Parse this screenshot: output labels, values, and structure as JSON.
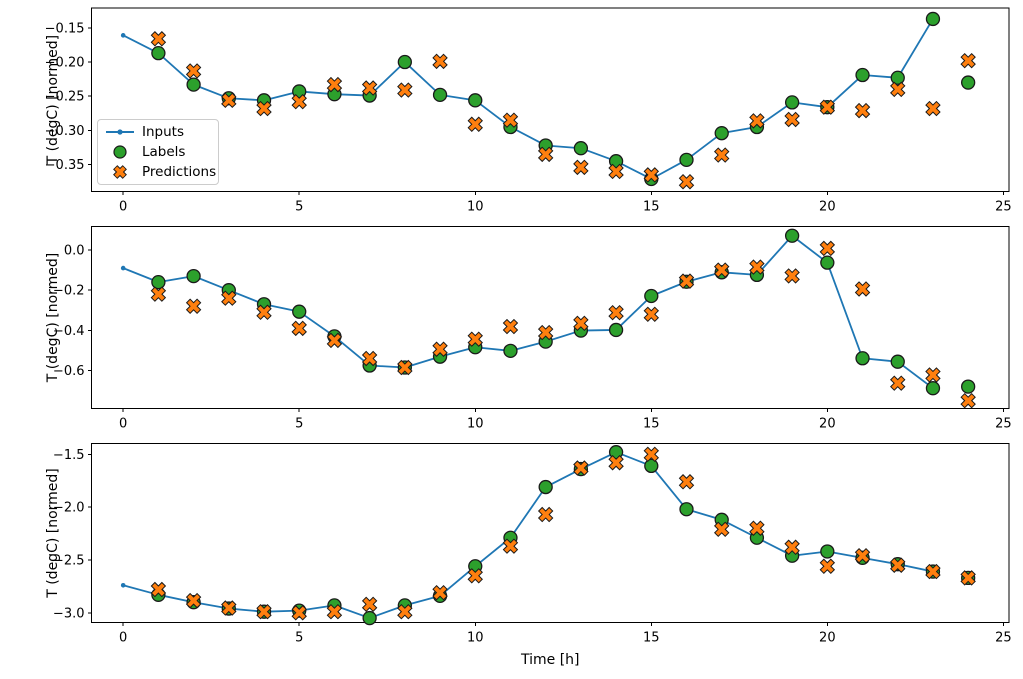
{
  "figure_title": "",
  "colors": {
    "inputs_line": "#1f77b4",
    "labels_marker": "#2ca02c",
    "predictions_marker": "#ff7f0e",
    "marker_edge": "#1a1a1a",
    "axis": "#000000",
    "legend_border": "#cccccc"
  },
  "legend": {
    "position": "upper-left-of-first-subplot",
    "items": [
      {
        "label": "Inputs",
        "marker": "line-with-dot"
      },
      {
        "label": "Labels",
        "marker": "green-circle"
      },
      {
        "label": "Predictions",
        "marker": "orange-x"
      }
    ]
  },
  "xlabel": "Time [h]",
  "ylabel": "T (degC) [normed]",
  "chart_data": [
    {
      "type": "line",
      "subplot": 1,
      "ylabel": "T (degC) [normed]",
      "xlim": [
        -0.9,
        25.16
      ],
      "ylim": [
        -0.389,
        -0.121
      ],
      "xticks": [
        0,
        5,
        10,
        15,
        20,
        25
      ],
      "xtick_labels": [
        "0",
        "5",
        "10",
        "15",
        "20",
        "25"
      ],
      "yticks": [
        -0.15,
        -0.2,
        -0.25,
        -0.3,
        -0.35
      ],
      "ytick_labels": [
        "−0.15",
        "−0.20",
        "−0.25",
        "−0.30",
        "−0.35"
      ],
      "grid": false,
      "legend_visible": true,
      "series": [
        {
          "name": "Inputs",
          "type": "line",
          "marker": "dot",
          "x": [
            0,
            1,
            2,
            3,
            4,
            5,
            6,
            7,
            8,
            9,
            10,
            11,
            12,
            13,
            14,
            15,
            16,
            17,
            18,
            19,
            20,
            21,
            22,
            23
          ],
          "y": [
            -0.161,
            -0.187,
            -0.233,
            -0.253,
            -0.256,
            -0.243,
            -0.247,
            -0.249,
            -0.2,
            -0.248,
            -0.256,
            -0.295,
            -0.322,
            -0.326,
            -0.345,
            -0.371,
            -0.343,
            -0.304,
            -0.295,
            -0.259,
            -0.266,
            -0.219,
            -0.223,
            -0.137
          ]
        },
        {
          "name": "Labels",
          "type": "scatter",
          "marker": "circle",
          "x": [
            1,
            2,
            3,
            4,
            5,
            6,
            7,
            8,
            9,
            10,
            11,
            12,
            13,
            14,
            15,
            16,
            17,
            18,
            19,
            20,
            21,
            22,
            23,
            24
          ],
          "y": [
            -0.187,
            -0.233,
            -0.253,
            -0.256,
            -0.243,
            -0.247,
            -0.249,
            -0.2,
            -0.248,
            -0.256,
            -0.295,
            -0.322,
            -0.326,
            -0.345,
            -0.371,
            -0.343,
            -0.304,
            -0.295,
            -0.259,
            -0.266,
            -0.219,
            -0.223,
            -0.137,
            -0.23
          ]
        },
        {
          "name": "Predictions",
          "type": "scatter",
          "marker": "x",
          "x": [
            1,
            2,
            3,
            4,
            5,
            6,
            7,
            8,
            9,
            10,
            11,
            12,
            13,
            14,
            15,
            16,
            17,
            18,
            19,
            20,
            21,
            22,
            23,
            24
          ],
          "y": [
            -0.166,
            -0.213,
            -0.256,
            -0.268,
            -0.258,
            -0.233,
            -0.238,
            -0.241,
            -0.199,
            -0.291,
            -0.285,
            -0.335,
            -0.354,
            -0.36,
            -0.365,
            -0.375,
            -0.336,
            -0.286,
            -0.284,
            -0.266,
            -0.271,
            -0.24,
            -0.268,
            -0.198
          ]
        }
      ]
    },
    {
      "type": "line",
      "subplot": 2,
      "ylabel": "T (degC) [normed]",
      "xlim": [
        -0.9,
        25.16
      ],
      "ylim": [
        -0.788,
        0.116
      ],
      "xticks": [
        0,
        5,
        10,
        15,
        20,
        25
      ],
      "xtick_labels": [
        "0",
        "5",
        "10",
        "15",
        "20",
        "25"
      ],
      "yticks": [
        0.0,
        -0.2,
        -0.4,
        -0.6
      ],
      "ytick_labels": [
        "0.0",
        "−0.2",
        "−0.4",
        "−0.6"
      ],
      "grid": false,
      "legend_visible": false,
      "series": [
        {
          "name": "Inputs",
          "type": "line",
          "marker": "dot",
          "x": [
            0,
            1,
            2,
            3,
            4,
            5,
            6,
            7,
            8,
            9,
            10,
            11,
            12,
            13,
            14,
            15,
            16,
            17,
            18,
            19,
            20,
            21,
            22,
            23
          ],
          "y": [
            -0.09,
            -0.16,
            -0.13,
            -0.2,
            -0.27,
            -0.307,
            -0.43,
            -0.575,
            -0.585,
            -0.531,
            -0.484,
            -0.502,
            -0.456,
            -0.401,
            -0.398,
            -0.229,
            -0.158,
            -0.111,
            -0.124,
            0.071,
            -0.063,
            -0.539,
            -0.556,
            -0.688
          ]
        },
        {
          "name": "Labels",
          "type": "scatter",
          "marker": "circle",
          "x": [
            1,
            2,
            3,
            4,
            5,
            6,
            7,
            8,
            9,
            10,
            11,
            12,
            13,
            14,
            15,
            16,
            17,
            18,
            19,
            20,
            21,
            22,
            23,
            24
          ],
          "y": [
            -0.16,
            -0.13,
            -0.2,
            -0.27,
            -0.307,
            -0.43,
            -0.575,
            -0.585,
            -0.531,
            -0.484,
            -0.502,
            -0.456,
            -0.401,
            -0.398,
            -0.229,
            -0.158,
            -0.111,
            -0.124,
            0.071,
            -0.063,
            -0.539,
            -0.556,
            -0.688,
            -0.68
          ]
        },
        {
          "name": "Predictions",
          "type": "scatter",
          "marker": "x",
          "x": [
            1,
            2,
            3,
            4,
            5,
            6,
            7,
            8,
            9,
            10,
            11,
            12,
            13,
            14,
            15,
            16,
            17,
            18,
            19,
            20,
            21,
            22,
            23,
            24
          ],
          "y": [
            -0.22,
            -0.28,
            -0.24,
            -0.31,
            -0.39,
            -0.45,
            -0.54,
            -0.585,
            -0.494,
            -0.444,
            -0.381,
            -0.411,
            -0.365,
            -0.312,
            -0.32,
            -0.155,
            -0.1,
            -0.085,
            -0.129,
            0.008,
            -0.194,
            -0.663,
            -0.622,
            -0.75
          ]
        }
      ]
    },
    {
      "type": "line",
      "subplot": 3,
      "ylabel": "T (degC) [normed]",
      "xlabel": "Time [h]",
      "xlim": [
        -0.9,
        25.16
      ],
      "ylim": [
        -3.094,
        -1.396
      ],
      "xticks": [
        0,
        5,
        10,
        15,
        20,
        25
      ],
      "xtick_labels": [
        "0",
        "5",
        "10",
        "15",
        "20",
        "25"
      ],
      "yticks": [
        -1.5,
        -2.0,
        -2.5,
        -3.0
      ],
      "ytick_labels": [
        "−1.5",
        "−2.0",
        "−2.5",
        "−3.0"
      ],
      "grid": false,
      "legend_visible": false,
      "series": [
        {
          "name": "Inputs",
          "type": "line",
          "marker": "dot",
          "x": [
            0,
            1,
            2,
            3,
            4,
            5,
            6,
            7,
            8,
            9,
            10,
            11,
            12,
            13,
            14,
            15,
            16,
            17,
            18,
            19,
            20,
            21,
            22,
            23
          ],
          "y": [
            -2.74,
            -2.83,
            -2.9,
            -2.96,
            -2.99,
            -2.98,
            -2.93,
            -3.05,
            -2.93,
            -2.84,
            -2.56,
            -2.29,
            -1.81,
            -1.64,
            -1.48,
            -1.61,
            -2.02,
            -2.12,
            -2.29,
            -2.46,
            -2.42,
            -2.48,
            -2.54,
            -2.61
          ]
        },
        {
          "name": "Labels",
          "type": "scatter",
          "marker": "circle",
          "x": [
            1,
            2,
            3,
            4,
            5,
            6,
            7,
            8,
            9,
            10,
            11,
            12,
            13,
            14,
            15,
            16,
            17,
            18,
            19,
            20,
            21,
            22,
            23,
            24
          ],
          "y": [
            -2.83,
            -2.9,
            -2.96,
            -2.99,
            -2.98,
            -2.93,
            -3.05,
            -2.93,
            -2.84,
            -2.56,
            -2.29,
            -1.81,
            -1.64,
            -1.48,
            -1.61,
            -2.02,
            -2.12,
            -2.29,
            -2.46,
            -2.42,
            -2.48,
            -2.54,
            -2.61,
            -2.67
          ]
        },
        {
          "name": "Predictions",
          "type": "scatter",
          "marker": "x",
          "x": [
            1,
            2,
            3,
            4,
            5,
            6,
            7,
            8,
            9,
            10,
            11,
            12,
            13,
            14,
            15,
            16,
            17,
            18,
            19,
            20,
            21,
            22,
            23,
            24
          ],
          "y": [
            -2.78,
            -2.885,
            -2.955,
            -2.99,
            -3.0,
            -2.99,
            -2.92,
            -2.99,
            -2.81,
            -2.65,
            -2.37,
            -2.07,
            -1.63,
            -1.58,
            -1.5,
            -1.76,
            -2.21,
            -2.2,
            -2.38,
            -2.56,
            -2.46,
            -2.55,
            -2.61,
            -2.67
          ]
        }
      ]
    }
  ]
}
